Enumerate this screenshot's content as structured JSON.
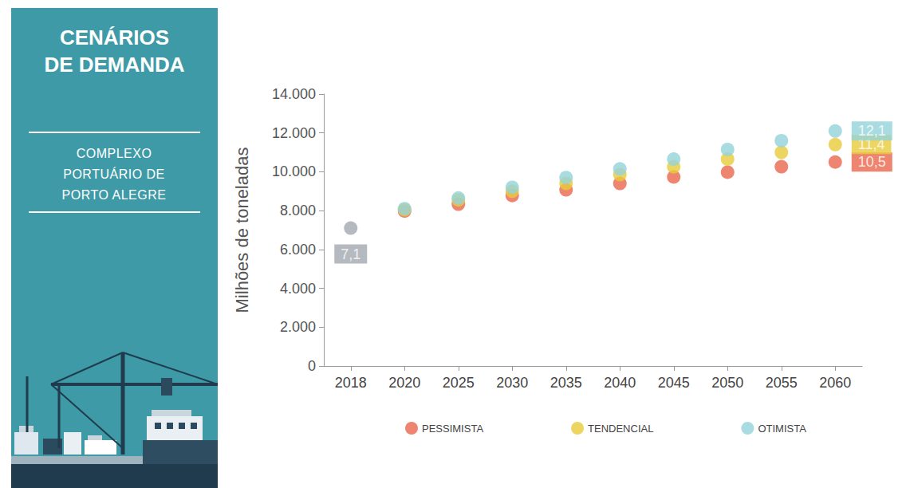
{
  "chart_data": {
    "type": "scatter",
    "panel_title": "CENÁRIOS DE DEMANDA",
    "panel_subtitle": "COMPLEXO PORTUÁRIO DE PORTO ALEGRE",
    "y_label": "Milhões de toneladas",
    "categories": [
      "2018",
      "2020",
      "2025",
      "2030",
      "2035",
      "2040",
      "2045",
      "2050",
      "2055",
      "2060"
    ],
    "base": {
      "category": "2018",
      "value": 7100,
      "value_label": "7,1",
      "color": "#a3a8b0"
    },
    "series": [
      {
        "name": "PESSIMISTA",
        "color": "#e8674e",
        "values": [
          null,
          7980,
          8330,
          8780,
          9070,
          9400,
          9730,
          9980,
          10260,
          10500
        ],
        "value_labels": [
          null,
          null,
          null,
          null,
          null,
          null,
          null,
          null,
          null,
          "10,5"
        ]
      },
      {
        "name": "TENDENCIAL",
        "color": "#e8cb3b",
        "values": [
          null,
          8050,
          8550,
          9000,
          9400,
          9850,
          10250,
          10650,
          11000,
          11400
        ],
        "value_labels": [
          null,
          null,
          null,
          null,
          null,
          null,
          null,
          null,
          null,
          "11,4"
        ]
      },
      {
        "name": "OTIMISTA",
        "color": "#93d3da",
        "values": [
          null,
          8100,
          8650,
          9200,
          9700,
          10150,
          10650,
          11150,
          11600,
          12100
        ],
        "value_labels": [
          null,
          null,
          null,
          null,
          null,
          null,
          null,
          null,
          null,
          "12,1"
        ]
      }
    ],
    "ylim": [
      0,
      14000
    ],
    "yticks": [
      0,
      {
        "value": 2000,
        "label": "2.000"
      },
      {
        "value": 4000,
        "label": "4.000"
      },
      {
        "value": 6000,
        "label": "6.000"
      },
      {
        "value": 8000,
        "label": "8.000"
      },
      {
        "value": 10000,
        "label": "10.000"
      },
      {
        "value": 12000,
        "label": "12.000"
      },
      {
        "value": 14000,
        "label": "14.000"
      }
    ],
    "grid": false,
    "legend": "bottom",
    "marker": "circle"
  }
}
